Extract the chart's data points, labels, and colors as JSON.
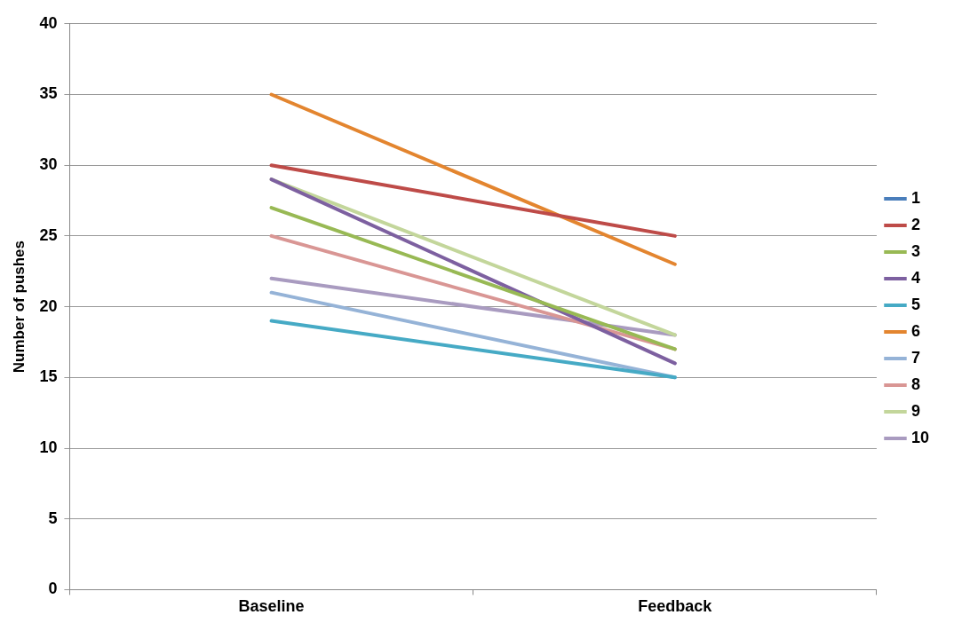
{
  "chart_data": {
    "type": "line",
    "ylabel": "Number of pushes",
    "categories": [
      "Baseline",
      "Feedback"
    ],
    "ylim": [
      0,
      40
    ],
    "yticks": [
      0,
      5,
      10,
      15,
      20,
      25,
      30,
      35,
      40
    ],
    "grid": "y",
    "legend": "right",
    "marker": "none",
    "line_style": "solid",
    "series": [
      {
        "name": "1",
        "color": "#4a7ebb",
        "values": [
          null,
          null
        ]
      },
      {
        "name": "2",
        "color": "#be4b48",
        "values": [
          30,
          25
        ]
      },
      {
        "name": "3",
        "color": "#98b954",
        "values": [
          27,
          17
        ]
      },
      {
        "name": "4",
        "color": "#7d60a0",
        "values": [
          29,
          16
        ]
      },
      {
        "name": "5",
        "color": "#46aac5",
        "values": [
          19,
          15
        ]
      },
      {
        "name": "6",
        "color": "#e3852f",
        "values": [
          35,
          23
        ]
      },
      {
        "name": "7",
        "color": "#95b3d7",
        "values": [
          21,
          15
        ]
      },
      {
        "name": "8",
        "color": "#d99694",
        "values": [
          25,
          17
        ]
      },
      {
        "name": "9",
        "color": "#c3d69b",
        "values": [
          29,
          18
        ]
      },
      {
        "name": "10",
        "color": "#a99bc0",
        "values": [
          22,
          18
        ]
      }
    ]
  }
}
